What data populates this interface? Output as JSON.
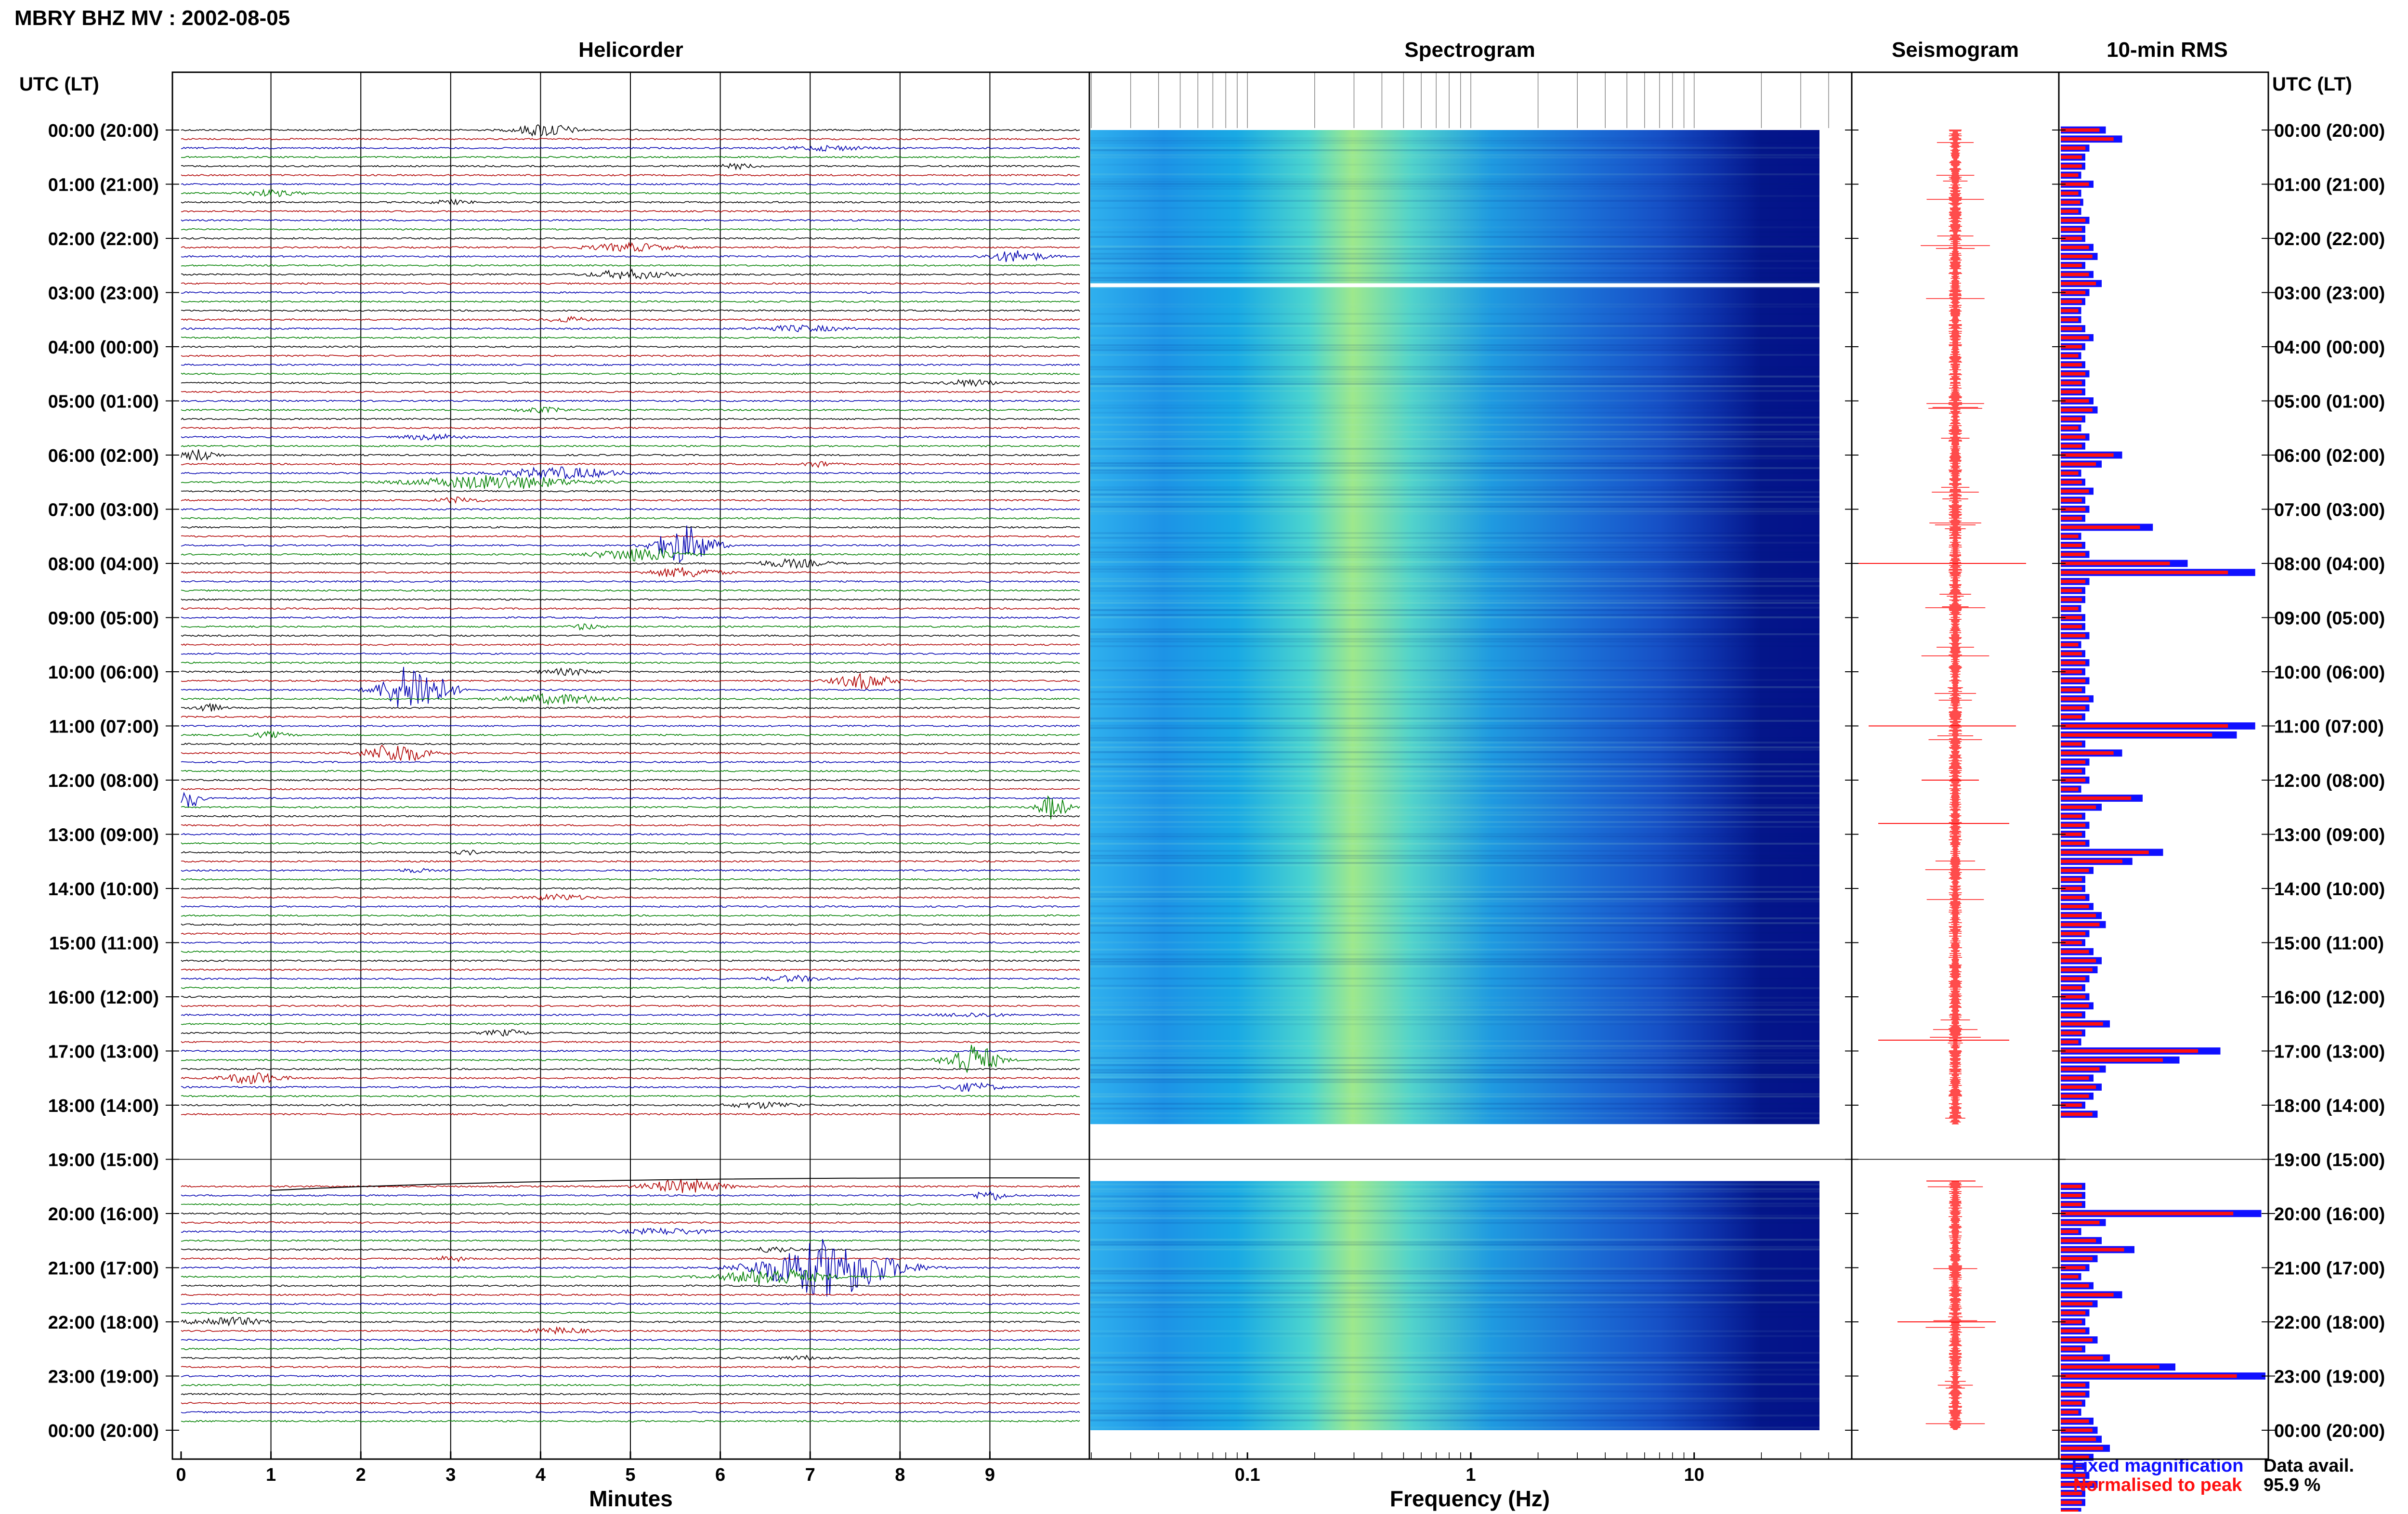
{
  "header": {
    "title": "MBRY BHZ MV : 2002-08-05"
  },
  "panels": {
    "helicorder": "Helicorder",
    "spectrogram": "Spectrogram",
    "seismogram": "Seismogram",
    "rms": "10-min RMS"
  },
  "axes": {
    "time_header_left": "UTC (LT)",
    "time_header_right": "UTC (LT)",
    "minutes_label": "Minutes",
    "frequency_label": "Frequency (Hz)"
  },
  "legend": {
    "fixed": "Fixed magnification",
    "normalised": "Normalised to peak",
    "fixed_color": "#1010ff",
    "normalised_color": "#ff1010"
  },
  "availability": {
    "label": "Data avail.",
    "value": "95.9 %"
  },
  "chart_data": {
    "type": "helicorder",
    "time_labels": [
      "00:00 (20:00)",
      "01:00 (21:00)",
      "02:00 (22:00)",
      "03:00 (23:00)",
      "04:00 (00:00)",
      "05:00 (01:00)",
      "06:00 (02:00)",
      "07:00 (03:00)",
      "08:00 (04:00)",
      "09:00 (05:00)",
      "10:00 (06:00)",
      "11:00 (07:00)",
      "12:00 (08:00)",
      "13:00 (09:00)",
      "14:00 (10:00)",
      "15:00 (11:00)",
      "16:00 (12:00)",
      "17:00 (13:00)",
      "18:00 (14:00)",
      "19:00 (15:00)",
      "20:00 (16:00)",
      "21:00 (17:00)",
      "22:00 (18:00)",
      "23:00 (19:00)",
      "00:00 (20:00)"
    ],
    "minute_ticks": [
      "0",
      "1",
      "2",
      "3",
      "4",
      "5",
      "6",
      "7",
      "8",
      "9"
    ],
    "frequency_ticks": [
      "0.1",
      "1",
      "10"
    ],
    "frequency_range_hz": [
      0.02,
      40
    ],
    "trace_colors": [
      "#000000",
      "#b00000",
      "#0000b0",
      "#008000"
    ],
    "data_gap_hours": [
      18.3,
      19.4
    ],
    "rms_10min": {
      "values": [
        0.22,
        0.3,
        0.14,
        0.12,
        0.12,
        0.1,
        0.16,
        0.1,
        0.11,
        0.1,
        0.14,
        0.12,
        0.12,
        0.16,
        0.18,
        0.12,
        0.16,
        0.2,
        0.14,
        0.12,
        0.1,
        0.1,
        0.12,
        0.16,
        0.12,
        0.1,
        0.12,
        0.14,
        0.12,
        0.12,
        0.16,
        0.18,
        0.12,
        0.1,
        0.14,
        0.12,
        0.3,
        0.2,
        0.1,
        0.12,
        0.16,
        0.12,
        0.14,
        0.12,
        0.45,
        0.1,
        0.12,
        0.14,
        0.62,
        0.95,
        0.14,
        0.12,
        0.12,
        0.1,
        0.12,
        0.12,
        0.14,
        0.1,
        0.12,
        0.14,
        0.12,
        0.14,
        0.12,
        0.16,
        0.14,
        0.12,
        0.95,
        0.86,
        0.12,
        0.3,
        0.14,
        0.12,
        0.14,
        0.1,
        0.4,
        0.2,
        0.12,
        0.14,
        0.12,
        0.14,
        0.5,
        0.35,
        0.16,
        0.12,
        0.12,
        0.14,
        0.16,
        0.2,
        0.22,
        0.14,
        0.12,
        0.16,
        0.2,
        0.18,
        0.14,
        0.12,
        0.14,
        0.16,
        0.12,
        0.24,
        0.12,
        0.1,
        0.78,
        0.58,
        0.22,
        0.16,
        0.2,
        0.16,
        0.12,
        0.18,
        0.1,
        0.12,
        0.12,
        0.14,
        0.12,
        0.12,
        0.12,
        0.12,
        0.12,
        0.12,
        0.98,
        0.22,
        0.1,
        0.2,
        0.36,
        0.18,
        0.14,
        0.1,
        0.16,
        0.3,
        0.18,
        0.14,
        0.12,
        0.14,
        0.18,
        0.12,
        0.24,
        0.56,
        1.0,
        0.14,
        0.14,
        0.12,
        0.1,
        0.16,
        0.18,
        0.2,
        0.24,
        0.16,
        0.12,
        0.14,
        0.18,
        0.12,
        0.12,
        0.1
      ],
      "note_colors": "fixed=blue, normalised=red"
    }
  }
}
